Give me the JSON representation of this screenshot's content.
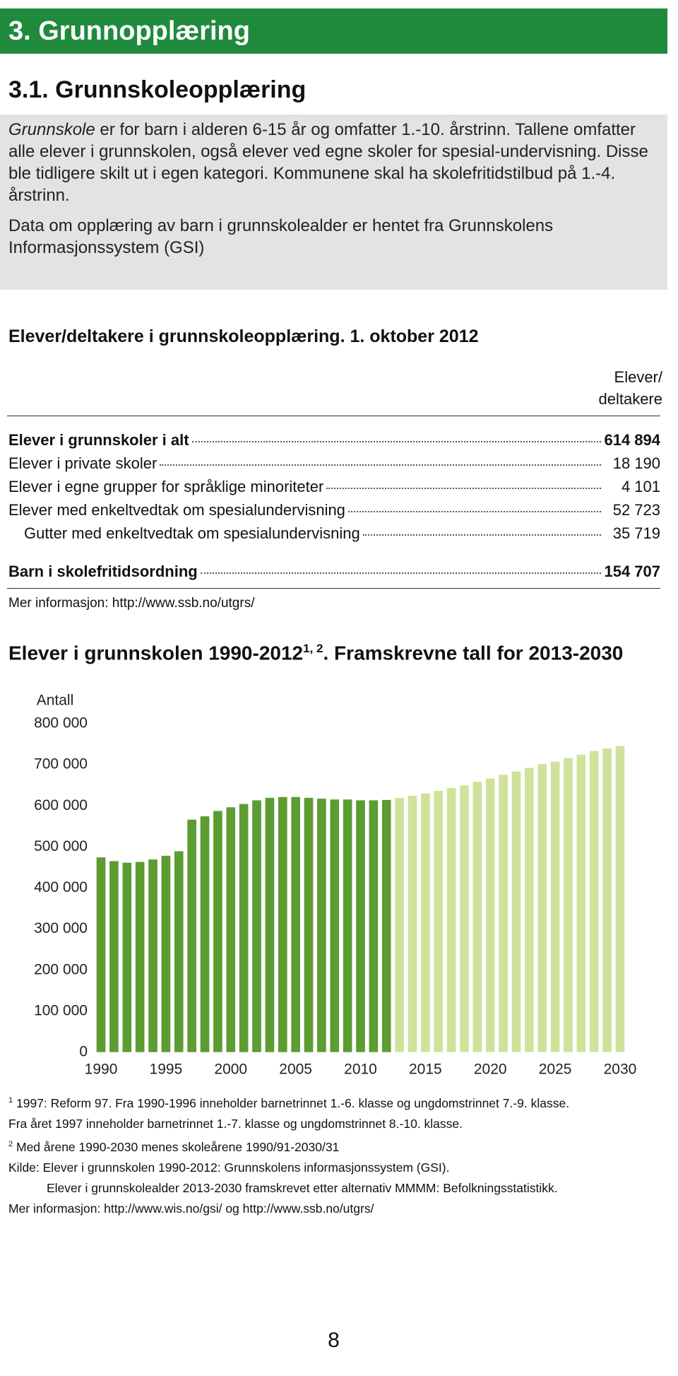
{
  "header": {
    "section": "3. Grunnopplæring",
    "subsection": "3.1. Grunnskoleopplæring"
  },
  "intro": {
    "p1_italic": "Grunnskole",
    "p1": " er for barn i alderen 6-15 år og omfatter 1.-10. årstrinn. Tallene omfatter alle elever i grunnskolen, også elever ved egne skoler for spesial-undervisning. Disse ble tidligere skilt ut i egen kategori. Kommunene skal ha skolefritidstilbud på 1.-4. årstrinn.",
    "p2": "Data om opplæring av barn i grunnskolealder er hentet fra Grunnskolens Informasjonssystem (GSI)"
  },
  "table": {
    "title": "Elever/deltakere i grunnskoleopplæring. 1. oktober 2012",
    "column_header": "Elever/ deltakere",
    "rows": [
      [
        "Elever i grunnskoler i alt",
        "614 894"
      ],
      [
        "Elever i  private skoler",
        "18 190"
      ],
      [
        "Elever i egne grupper for språklige minoriteter",
        "4 101"
      ],
      [
        "Elever med enkeltvedtak om spesialundervisning",
        "52 723"
      ],
      [
        "Gutter med enkeltvedtak om spesialundervisning",
        "35 719"
      ],
      [
        "Barn i skolefritidsordning",
        "154 707"
      ]
    ],
    "note": "Mer informasjon: http://www.ssb.no/utgrs/"
  },
  "chart_data": {
    "type": "bar",
    "title": "Elever i grunnskolen 1990-2012",
    "title_superscript": "1, 2",
    "title_suffix": ". Framskrevne tall for 2013-2030",
    "ylabel": "Antall",
    "x": [
      1990,
      1991,
      1992,
      1993,
      1994,
      1995,
      1996,
      1997,
      1998,
      1999,
      2000,
      2001,
      2002,
      2003,
      2004,
      2005,
      2006,
      2007,
      2008,
      2009,
      2010,
      2011,
      2012,
      2013,
      2014,
      2015,
      2016,
      2017,
      2018,
      2019,
      2020,
      2021,
      2022,
      2023,
      2024,
      2025,
      2026,
      2027,
      2028,
      2029,
      2030
    ],
    "series": [
      {
        "color": "#5c9c30",
        "values": [
          475000,
          466000,
          462000,
          464000,
          470000,
          479000,
          490000,
          567000,
          575000,
          588000,
          597000,
          605000,
          614000,
          620000,
          622000,
          622000,
          620000,
          618000,
          616000,
          616000,
          614000,
          614000,
          615000,
          null,
          null,
          null,
          null,
          null,
          null,
          null,
          null,
          null,
          null,
          null,
          null,
          null,
          null,
          null,
          null,
          null,
          null
        ]
      },
      {
        "color": "#cfe29a",
        "values": [
          null,
          null,
          null,
          null,
          null,
          null,
          null,
          null,
          null,
          null,
          null,
          null,
          null,
          null,
          null,
          null,
          null,
          null,
          null,
          null,
          null,
          null,
          null,
          620000,
          625000,
          631000,
          637000,
          644000,
          650000,
          659000,
          667000,
          676000,
          684000,
          693000,
          702000,
          708000,
          717000,
          725000,
          734000,
          740000,
          746000
        ]
      }
    ],
    "xlim": [
      1989.4,
      2030.6
    ],
    "xticks": [
      1990,
      1995,
      2000,
      2005,
      2010,
      2015,
      2020,
      2025,
      2030
    ],
    "ylim": [
      0,
      800000
    ],
    "yticks": [
      0,
      {
        "value": 100000,
        "label": "100 000"
      },
      {
        "value": 200000,
        "label": "200 000"
      },
      {
        "value": 300000,
        "label": "300 000"
      },
      {
        "value": 400000,
        "label": "400 000"
      },
      {
        "value": 500000,
        "label": "500 000"
      },
      {
        "value": 600000,
        "label": "600 000"
      },
      {
        "value": 700000,
        "label": "700 000"
      },
      {
        "value": 800000,
        "label": "800 000"
      }
    ],
    "grid": false
  },
  "footnotes": {
    "n1": "1",
    "f1": "1997: Reform 97. Fra 1990-1996 inneholder barnetrinnet 1.-6. klasse og ungdomstrinnet 7.-9. klasse.",
    "f1b": "Fra året 1997 inneholder barnetrinnet 1.-7. klasse og ungdomstrinnet 8.-10. klasse.",
    "n2": "2",
    "f2": "Med årene 1990-2030 menes skoleårene 1990/91-2030/31",
    "source": "Kilde: Elever i grunnskolen 1990-2012: Grunnskolens informasjonssystem (GSI).",
    "source2": "Elever i grunnskolealder 2013-2030 framskrevet etter alternativ MMMM: Befolkningsstatistikk.",
    "more": "Mer informasjon: http://www.wis.no/gsi/ og http://www.ssb.no/utgrs/"
  },
  "page_number": "8"
}
